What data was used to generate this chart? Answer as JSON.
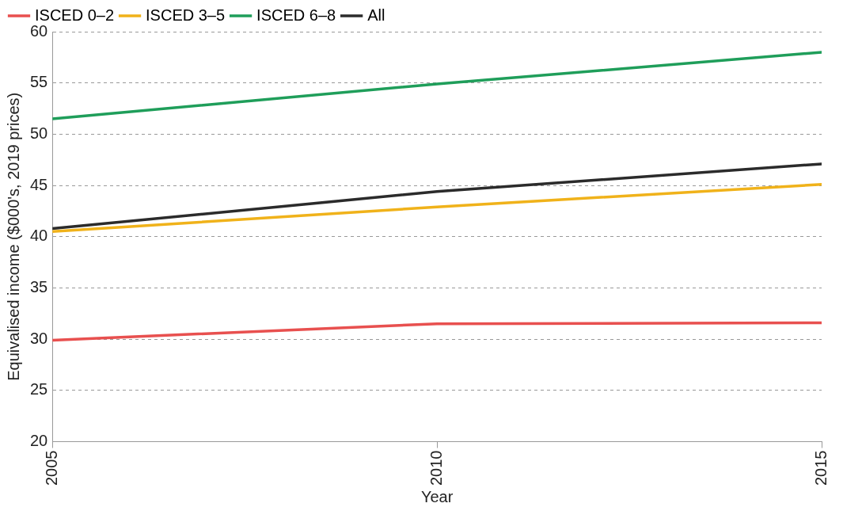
{
  "chart_data": {
    "type": "line",
    "xlabel": "Year",
    "ylabel": "Equivalised income ($000's, 2019 prices)",
    "x": [
      2005,
      2010,
      2015
    ],
    "xlim": [
      2005,
      2015
    ],
    "xticks": [
      2005,
      2010,
      2015
    ],
    "ylim": [
      20,
      60
    ],
    "yticks": [
      20,
      25,
      30,
      35,
      40,
      45,
      50,
      55,
      60
    ],
    "grid": "y",
    "legend": "top left",
    "marker": "none",
    "line_style": "solid",
    "series": [
      {
        "name": "ISCED 0–2",
        "color": "#e8504f",
        "values": [
          29.9,
          31.5,
          31.6
        ]
      },
      {
        "name": "ISCED 3–5",
        "color": "#f0b21a",
        "values": [
          40.5,
          42.9,
          45.1
        ]
      },
      {
        "name": "ISCED 6–8",
        "color": "#1f9e5a",
        "values": [
          51.5,
          54.9,
          58.0
        ]
      },
      {
        "name": "All",
        "color": "#2b2b2b",
        "values": [
          40.8,
          44.4,
          47.1
        ]
      }
    ]
  }
}
